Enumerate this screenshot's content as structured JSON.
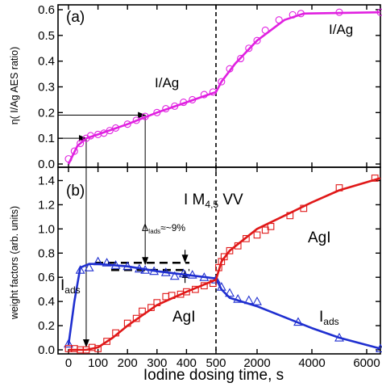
{
  "chart_data": [
    {
      "type": "line",
      "panel_label": "(a)",
      "ylabel": "η( I/Ag AES ratio)",
      "ylim": [
        0,
        0.6
      ],
      "yticks": [
        "0.0",
        "0.1",
        "0.2",
        "0.3",
        "0.4",
        "0.5",
        "0.6"
      ],
      "x_segments": [
        {
          "range": [
            0,
            500
          ],
          "ticks": [
            0,
            100,
            200,
            300,
            400,
            500
          ]
        },
        {
          "range": [
            500,
            6500
          ],
          "ticks": [
            2000,
            4000,
            6000
          ]
        }
      ],
      "series": [
        {
          "color": "#e020e0",
          "marker": "circle",
          "points": [
            [
              0,
              0.02
            ],
            [
              20,
              0.05
            ],
            [
              40,
              0.08
            ],
            [
              60,
              0.1
            ],
            [
              75,
              0.11
            ],
            [
              100,
              0.115
            ],
            [
              120,
              0.12
            ],
            [
              140,
              0.13
            ],
            [
              160,
              0.14
            ],
            [
              200,
              0.155
            ],
            [
              230,
              0.17
            ],
            [
              260,
              0.185
            ],
            [
              300,
              0.2
            ],
            [
              330,
              0.215
            ],
            [
              360,
              0.225
            ],
            [
              390,
              0.24
            ],
            [
              420,
              0.25
            ],
            [
              460,
              0.27
            ],
            [
              490,
              0.28
            ],
            [
              700,
              0.32
            ],
            [
              1000,
              0.37
            ],
            [
              1400,
              0.41
            ],
            [
              1700,
              0.45
            ],
            [
              2000,
              0.48
            ],
            [
              2300,
              0.52
            ],
            [
              2800,
              0.56
            ],
            [
              3300,
              0.58
            ],
            [
              3600,
              0.585
            ],
            [
              5000,
              0.59
            ],
            [
              6500,
              0.59
            ]
          ],
          "fit": [
            [
              0,
              0.0
            ],
            [
              30,
              0.07
            ],
            [
              60,
              0.1
            ],
            [
              100,
              0.115
            ],
            [
              200,
              0.155
            ],
            [
              300,
              0.2
            ],
            [
              400,
              0.24
            ],
            [
              500,
              0.28
            ],
            [
              700,
              0.32
            ],
            [
              1200,
              0.39
            ],
            [
              2000,
              0.48
            ],
            [
              3000,
              0.56
            ],
            [
              3700,
              0.585
            ],
            [
              6500,
              0.59
            ]
          ]
        }
      ],
      "annotations": [
        "I/Ag",
        "I/Ag"
      ],
      "reference_lines": {
        "vertical_x": 500,
        "horizontal_y": [
          0.1,
          0.19
        ]
      }
    },
    {
      "type": "line",
      "panel_label": "(b)",
      "ylabel": "weight factors (arb. units)",
      "ylim": [
        0,
        1.45
      ],
      "yticks": [
        "0.0",
        "0.2",
        "0.4",
        "0.6",
        "0.8",
        "1.0",
        "1.2",
        "1.4"
      ],
      "xlabel": "Iodine dosing time, s",
      "x_segments": [
        {
          "range": [
            0,
            500
          ],
          "ticks": [
            0,
            100,
            200,
            300,
            400,
            500
          ]
        },
        {
          "range": [
            500,
            6500
          ],
          "ticks": [
            2000,
            4000,
            6000
          ]
        }
      ],
      "series": [
        {
          "label_main": "I",
          "label_sub": "ads",
          "color": "#1f2fd0",
          "marker": "triangle",
          "points": [
            [
              0,
              0.05
            ],
            [
              40,
              0.66
            ],
            [
              70,
              0.68
            ],
            [
              100,
              0.73
            ],
            [
              130,
              0.72
            ],
            [
              160,
              0.7
            ],
            [
              200,
              0.69
            ],
            [
              240,
              0.67
            ],
            [
              260,
              0.66
            ],
            [
              290,
              0.65
            ],
            [
              330,
              0.64
            ],
            [
              360,
              0.61
            ],
            [
              390,
              0.63
            ],
            [
              420,
              0.62
            ],
            [
              460,
              0.6
            ],
            [
              500,
              0.58
            ],
            [
              700,
              0.52
            ],
            [
              1000,
              0.47
            ],
            [
              1300,
              0.42
            ],
            [
              1700,
              0.41
            ],
            [
              2000,
              0.4
            ],
            [
              3500,
              0.23
            ],
            [
              5000,
              0.1
            ],
            [
              6500,
              0.01
            ]
          ],
          "fit": [
            [
              0,
              0.04
            ],
            [
              20,
              0.4
            ],
            [
              40,
              0.68
            ],
            [
              70,
              0.71
            ],
            [
              100,
              0.71
            ],
            [
              200,
              0.69
            ],
            [
              300,
              0.65
            ],
            [
              400,
              0.62
            ],
            [
              500,
              0.59
            ],
            [
              700,
              0.5
            ],
            [
              1000,
              0.43
            ],
            [
              2000,
              0.36
            ],
            [
              3000,
              0.27
            ],
            [
              4000,
              0.18
            ],
            [
              5000,
              0.1
            ],
            [
              6500,
              0.01
            ]
          ]
        },
        {
          "label_main": "AgI",
          "color": "#e01818",
          "marker": "square",
          "points": [
            [
              0,
              0.01
            ],
            [
              20,
              0.01
            ],
            [
              40,
              0.0
            ],
            [
              60,
              0.0
            ],
            [
              80,
              0.02
            ],
            [
              100,
              0.01
            ],
            [
              130,
              0.07
            ],
            [
              160,
              0.14
            ],
            [
              200,
              0.22
            ],
            [
              230,
              0.26
            ],
            [
              250,
              0.32
            ],
            [
              280,
              0.35
            ],
            [
              300,
              0.39
            ],
            [
              330,
              0.44
            ],
            [
              350,
              0.45
            ],
            [
              380,
              0.46
            ],
            [
              400,
              0.48
            ],
            [
              430,
              0.5
            ],
            [
              460,
              0.53
            ],
            [
              490,
              0.55
            ],
            [
              600,
              0.68
            ],
            [
              700,
              0.73
            ],
            [
              800,
              0.77
            ],
            [
              1000,
              0.82
            ],
            [
              1300,
              0.86
            ],
            [
              1600,
              0.92
            ],
            [
              2000,
              0.95
            ],
            [
              2300,
              0.99
            ],
            [
              2500,
              1.02
            ],
            [
              3200,
              1.11
            ],
            [
              3700,
              1.17
            ],
            [
              5000,
              1.34
            ],
            [
              6300,
              1.42
            ]
          ],
          "fit": [
            [
              0,
              0.0
            ],
            [
              60,
              0.0
            ],
            [
              100,
              0.02
            ],
            [
              150,
              0.1
            ],
            [
              200,
              0.2
            ],
            [
              300,
              0.37
            ],
            [
              400,
              0.48
            ],
            [
              500,
              0.58
            ],
            [
              700,
              0.73
            ],
            [
              1000,
              0.82
            ],
            [
              2000,
              1.0
            ],
            [
              3000,
              1.11
            ],
            [
              4000,
              1.22
            ],
            [
              5000,
              1.32
            ],
            [
              6500,
              1.42
            ]
          ]
        }
      ],
      "annotations": {
        "line_label": "I M",
        "line_label_sub": "4,5",
        "line_label_tail": " VV",
        "delta_main": "Δ",
        "delta_sub": "Iads",
        "delta_tail": "≈~9%",
        "ads_label": "I",
        "ads_label_sub": "ads",
        "agi_label": "AgI"
      },
      "reference_lines": {
        "vertical_x": 500,
        "dashed_y": [
          0.72,
          0.66
        ]
      }
    }
  ]
}
